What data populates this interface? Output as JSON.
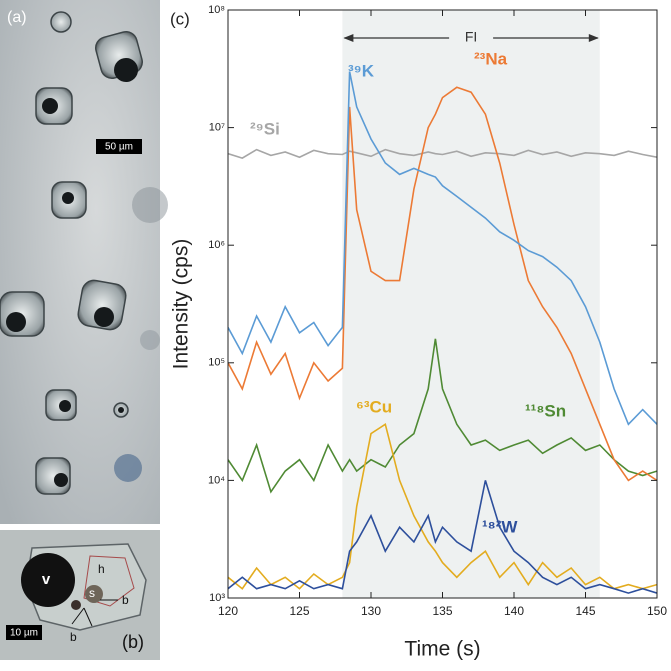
{
  "panel_a": {
    "label": "(a)",
    "scalebar": "50 µm"
  },
  "panel_b": {
    "label": "(b)",
    "scalebar": "10 µm",
    "annotations": [
      "v",
      "h",
      "s",
      "b",
      "b"
    ]
  },
  "chart_data": {
    "type": "line",
    "panel_label": "(c)",
    "ylabel": "Intensity (cps)",
    "xlabel": "Time (s)",
    "log_scale": true,
    "xlim": [
      120,
      150
    ],
    "xticks": [
      120,
      125,
      130,
      135,
      140,
      145,
      150
    ],
    "ylim": [
      1000,
      100000000
    ],
    "yticks": [
      {
        "value": 1000,
        "label": "10³"
      },
      {
        "value": 10000,
        "label": "10⁴"
      },
      {
        "value": 100000,
        "label": "10⁵"
      },
      {
        "value": 1000000,
        "label": "10⁶"
      },
      {
        "value": 10000000,
        "label": "10⁷"
      },
      {
        "value": 100000000,
        "label": "10⁸"
      }
    ],
    "span": {
      "label": "FI",
      "x": [
        128,
        146
      ],
      "color": "#eef1f1"
    },
    "x": [
      120,
      121,
      122,
      123,
      124,
      125,
      126,
      127,
      128,
      128.5,
      129,
      130,
      131,
      132,
      133,
      134,
      134.5,
      135,
      136,
      137,
      138,
      139,
      140,
      141,
      142,
      143,
      144,
      145,
      146,
      147,
      148,
      149,
      150
    ],
    "series": [
      {
        "name": "²⁹Si",
        "color": "#a6a6a6",
        "values": [
          6000000,
          5500000,
          6500000,
          5800000,
          6200000,
          5600000,
          6400000,
          6000000,
          5900000,
          6300000,
          6100000,
          5700000,
          6500000,
          6000000,
          5800000,
          6200000,
          6000000,
          5900000,
          6300000,
          5700000,
          6100000,
          6000000,
          5800000,
          6400000,
          5900000,
          6200000,
          5700000,
          6100000,
          6000000,
          5800000,
          6300000,
          5900000,
          5600000
        ]
      },
      {
        "name": "¹¹⁸Sn",
        "color": "#4f8a34",
        "values": [
          15000,
          10000,
          20000,
          8000,
          12000,
          15000,
          10000,
          20000,
          12000,
          15000,
          12000,
          15000,
          13000,
          20000,
          25000,
          60000,
          160000,
          60000,
          30000,
          20000,
          22000,
          18000,
          20000,
          22000,
          17000,
          20000,
          23000,
          18000,
          20000,
          15000,
          12000,
          11000,
          12000
        ]
      },
      {
        "name": "²³Na",
        "color": "#ec7a35",
        "values": [
          100000,
          60000,
          150000,
          80000,
          120000,
          50000,
          100000,
          70000,
          90000,
          15000000,
          2000000,
          600000,
          500000,
          500000,
          3000000,
          10000000,
          13000000,
          18000000,
          22000000,
          20000000,
          13000000,
          5000000,
          1500000,
          500000,
          300000,
          200000,
          120000,
          60000,
          30000,
          15000,
          10000,
          12000,
          10000
        ]
      },
      {
        "name": "³⁹K",
        "color": "#5b9bd5",
        "values": [
          200000,
          120000,
          250000,
          150000,
          300000,
          180000,
          220000,
          140000,
          200000,
          30000000,
          15000000,
          8000000,
          5000000,
          4000000,
          4500000,
          4000000,
          3800000,
          3200000,
          2600000,
          2100000,
          1700000,
          1300000,
          1100000,
          900000,
          800000,
          650000,
          500000,
          300000,
          150000,
          60000,
          30000,
          40000,
          30000
        ]
      },
      {
        "name": "⁶³Cu",
        "color": "#e3ac1f",
        "values": [
          1500,
          1200,
          1800,
          1300,
          1500,
          1200,
          1600,
          1300,
          1500,
          2000,
          6000,
          25000,
          30000,
          10000,
          5000,
          3000,
          2500,
          2000,
          1500,
          2000,
          2500,
          1500,
          2000,
          1300,
          2000,
          1500,
          1800,
          1300,
          1500,
          1200,
          1300,
          1200,
          1300
        ]
      },
      {
        "name": "¹⁸²W",
        "color": "#2d4f9c",
        "values": [
          1200,
          1500,
          1200,
          1300,
          1200,
          1400,
          1200,
          1300,
          1200,
          2500,
          3000,
          5000,
          2500,
          4000,
          3000,
          5000,
          3000,
          4000,
          3000,
          2500,
          10000,
          4000,
          2500,
          2000,
          1500,
          1300,
          1500,
          1200,
          1300,
          1200,
          1100,
          1200,
          1100
        ]
      }
    ]
  }
}
